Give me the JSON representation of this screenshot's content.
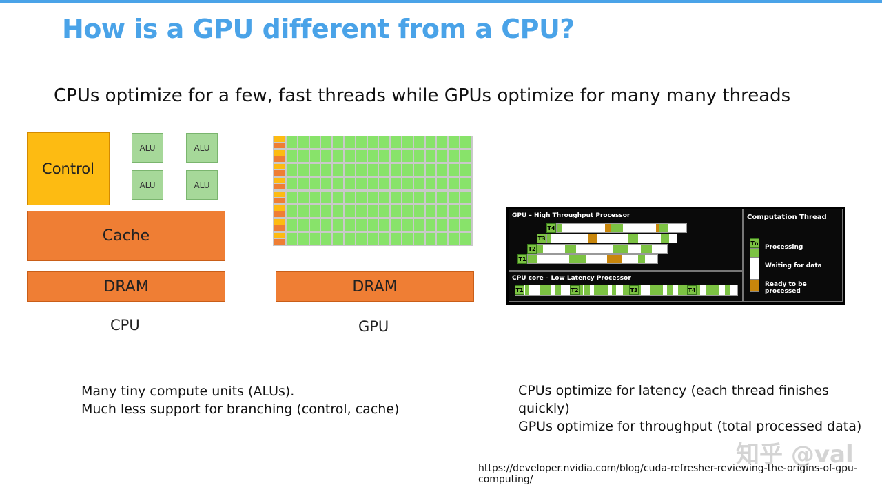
{
  "title": "How is a GPU different from a CPU?",
  "subtitle": "CPUs optimize for a few, fast threads while GPUs optimize for many many threads",
  "cpu_diagram": {
    "control": "Control",
    "alu": "ALU",
    "cache": "Cache",
    "dram": "DRAM",
    "caption": "CPU"
  },
  "gpu_diagram": {
    "dram": "DRAM",
    "caption": "GPU",
    "rows": 8,
    "cols": 16
  },
  "throughput_panel": {
    "gpu_title": "GPU – High Throughput Processor",
    "cpu_title": "CPU core – Low Latency Processor",
    "legend_title": "Computation Thread",
    "legend_tn": "Tn",
    "legend": {
      "processing": "Processing",
      "waiting": "Waiting for data",
      "ready": "Ready to be processed"
    },
    "gpu_threads": [
      "T4",
      "T3",
      "T2",
      "T1"
    ],
    "cpu_threads": [
      "T1",
      "T2",
      "T3",
      "T4"
    ],
    "colors": {
      "processing": "#7cc243",
      "waiting": "#ffffff",
      "ready": "#c8860c"
    }
  },
  "gpu_points": {
    "line1": "Many tiny compute units (ALUs).",
    "line2": "Much less support for branching (control, cache)"
  },
  "cpu_points": {
    "line1": "CPUs optimize for latency (each thread finishes quickly)",
    "line2": "GPUs optimize for throughput (total processed data)"
  },
  "watermark": "知乎 @val",
  "source_url": "https://developer.nvidia.com/blog/cuda-refresher-reviewing-the-origins-of-gpu-computing/"
}
